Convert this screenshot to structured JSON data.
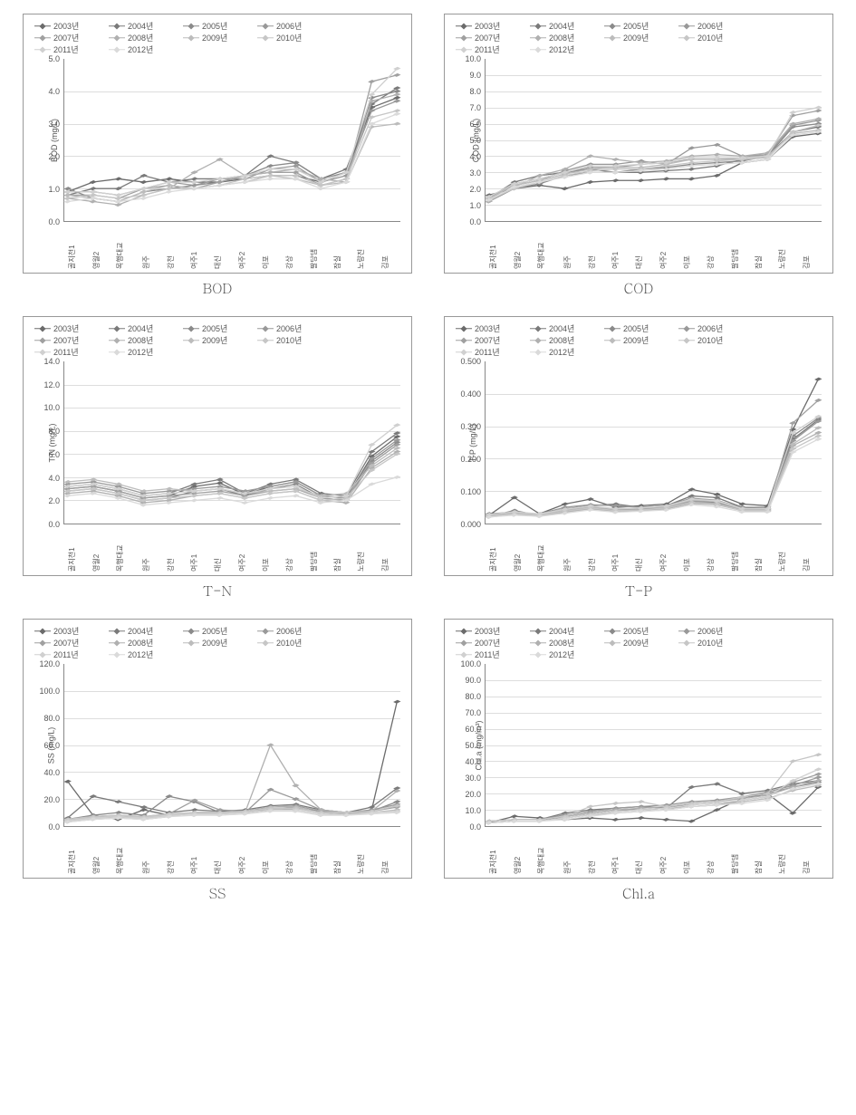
{
  "sites": [
    "골지천1",
    "영월2",
    "목행대교",
    "원주",
    "강천",
    "여주1",
    "대신",
    "여주2",
    "이포",
    "강상",
    "팔당댐",
    "잠실",
    "노량진",
    "김포"
  ],
  "years": [
    "2003년",
    "2004년",
    "2005년",
    "2006년",
    "2007년",
    "2008년",
    "2009년",
    "2010년",
    "2011년",
    "2012년"
  ],
  "colors": [
    "#6b6b6b",
    "#7a7a7a",
    "#8a8a8a",
    "#999999",
    "#a0a0a0",
    "#b0b0b0",
    "#bcbcbc",
    "#c6c6c6",
    "#d0d0d0",
    "#dadada"
  ],
  "legend_fontsize": 9,
  "axis_fontsize": 9,
  "caption_fontsize": 15,
  "caption_font": "Batang, serif",
  "grid_color": "#dddddd",
  "axis_color": "#888888",
  "background": "#ffffff",
  "charts": [
    {
      "id": "bod",
      "caption": "BOD",
      "ylabel": "BOD (mg/L)",
      "ymin": 0,
      "ymax": 5,
      "ystep": 1,
      "decimals": 1,
      "series": [
        [
          0.9,
          1.2,
          1.3,
          1.2,
          1.3,
          1.2,
          1.2,
          1.3,
          1.4,
          1.4,
          1.2,
          1.5,
          3.5,
          3.8
        ],
        [
          0.8,
          1.0,
          1.0,
          1.4,
          1.2,
          1.3,
          1.3,
          1.4,
          2.0,
          1.8,
          1.3,
          1.6,
          3.6,
          4.1
        ],
        [
          1.0,
          0.7,
          0.6,
          0.9,
          1.0,
          1.1,
          1.2,
          1.4,
          1.7,
          1.8,
          1.3,
          1.5,
          3.8,
          4.0
        ],
        [
          0.9,
          0.9,
          0.8,
          1.0,
          1.2,
          1.1,
          1.3,
          1.3,
          1.6,
          1.7,
          1.2,
          1.4,
          3.4,
          3.7
        ],
        [
          0.8,
          0.8,
          0.7,
          1.0,
          1.1,
          1.0,
          1.2,
          1.4,
          1.5,
          1.5,
          1.1,
          1.3,
          4.3,
          4.5
        ],
        [
          0.7,
          0.6,
          0.5,
          0.8,
          1.0,
          1.5,
          1.9,
          1.4,
          1.5,
          1.6,
          1.3,
          1.2,
          3.7,
          3.9
        ],
        [
          0.8,
          0.7,
          0.6,
          0.9,
          1.1,
          1.0,
          1.1,
          1.2,
          1.4,
          1.3,
          1.1,
          1.2,
          2.9,
          3.0
        ],
        [
          0.7,
          0.8,
          0.7,
          0.8,
          1.0,
          1.0,
          1.1,
          1.3,
          1.4,
          1.4,
          1.1,
          1.3,
          3.2,
          3.4
        ],
        [
          0.9,
          0.9,
          0.8,
          1.0,
          1.2,
          1.2,
          1.3,
          1.4,
          1.6,
          1.6,
          1.2,
          1.5,
          3.9,
          4.7
        ],
        [
          0.6,
          0.7,
          0.6,
          0.7,
          0.9,
          1.0,
          1.1,
          1.2,
          1.3,
          1.3,
          1.0,
          1.2,
          3.0,
          3.3
        ]
      ]
    },
    {
      "id": "cod",
      "caption": "COD",
      "ylabel": "COD (mg/L)",
      "ymin": 0,
      "ymax": 10,
      "ystep": 1,
      "decimals": 1,
      "series": [
        [
          1.6,
          2.0,
          2.2,
          2.0,
          2.4,
          2.5,
          2.5,
          2.6,
          2.6,
          2.8,
          3.6,
          3.8,
          5.2,
          5.4
        ],
        [
          1.4,
          2.4,
          2.8,
          3.0,
          3.2,
          3.0,
          3.0,
          3.1,
          3.2,
          3.4,
          3.8,
          4.0,
          5.5,
          5.8
        ],
        [
          1.2,
          2.0,
          2.3,
          2.8,
          3.0,
          3.0,
          3.2,
          3.3,
          3.5,
          3.6,
          3.7,
          4.0,
          5.8,
          6.0
        ],
        [
          1.5,
          2.2,
          2.5,
          3.1,
          3.5,
          3.5,
          3.7,
          3.5,
          4.5,
          4.7,
          4.0,
          4.1,
          5.9,
          6.2
        ],
        [
          1.3,
          2.3,
          2.6,
          3.0,
          3.3,
          3.3,
          3.5,
          3.6,
          3.8,
          3.8,
          3.9,
          4.1,
          6.5,
          6.8
        ],
        [
          1.2,
          2.1,
          2.8,
          3.2,
          4.0,
          3.8,
          3.6,
          3.7,
          4.0,
          4.1,
          4.0,
          4.2,
          6.0,
          6.3
        ],
        [
          1.4,
          2.2,
          2.5,
          2.9,
          3.2,
          3.3,
          3.3,
          3.5,
          3.8,
          3.8,
          3.8,
          4.0,
          5.4,
          5.6
        ],
        [
          1.3,
          2.0,
          2.4,
          2.8,
          3.1,
          3.2,
          3.2,
          3.4,
          3.6,
          3.7,
          3.8,
          3.9,
          5.5,
          5.9
        ],
        [
          1.5,
          2.3,
          2.6,
          3.0,
          3.4,
          3.4,
          3.5,
          3.6,
          3.9,
          3.9,
          3.9,
          4.0,
          6.7,
          7.0
        ],
        [
          1.3,
          2.1,
          2.4,
          2.7,
          3.0,
          3.0,
          3.1,
          3.2,
          3.4,
          3.5,
          3.6,
          3.8,
          5.3,
          5.5
        ]
      ]
    },
    {
      "id": "tn",
      "caption": "T-N",
      "ylabel": "T-N (mg/L)",
      "ymin": 0,
      "ymax": 14,
      "ystep": 2,
      "decimals": 1,
      "series": [
        [
          3.0,
          3.2,
          2.8,
          2.2,
          2.4,
          3.2,
          3.5,
          2.5,
          3.2,
          3.6,
          2.4,
          2.2,
          5.8,
          7.5
        ],
        [
          3.2,
          3.4,
          3.0,
          2.4,
          2.6,
          3.4,
          3.8,
          2.6,
          3.4,
          3.8,
          2.6,
          2.4,
          6.2,
          7.8
        ],
        [
          2.8,
          3.0,
          2.6,
          2.0,
          2.2,
          2.8,
          3.0,
          2.4,
          3.0,
          3.4,
          2.2,
          2.0,
          5.4,
          7.0
        ],
        [
          3.4,
          3.6,
          3.2,
          2.6,
          2.8,
          3.0,
          3.2,
          2.8,
          3.2,
          3.6,
          2.4,
          2.2,
          5.6,
          7.2
        ],
        [
          3.0,
          3.2,
          2.8,
          2.2,
          2.4,
          2.6,
          2.8,
          2.4,
          2.8,
          3.0,
          2.2,
          2.0,
          5.2,
          6.8
        ],
        [
          2.6,
          2.8,
          2.4,
          1.8,
          2.0,
          2.4,
          2.6,
          2.2,
          2.6,
          2.8,
          2.0,
          1.8,
          4.8,
          6.2
        ],
        [
          3.6,
          3.8,
          3.4,
          2.8,
          3.0,
          2.8,
          3.0,
          2.6,
          2.8,
          3.0,
          2.4,
          2.6,
          5.0,
          6.5
        ],
        [
          2.8,
          3.0,
          2.6,
          2.0,
          2.2,
          2.4,
          2.6,
          2.2,
          2.6,
          2.8,
          2.0,
          2.2,
          4.6,
          6.0
        ],
        [
          3.2,
          3.4,
          3.0,
          2.4,
          2.6,
          2.8,
          3.0,
          2.6,
          3.0,
          3.2,
          2.2,
          2.4,
          6.8,
          8.5
        ],
        [
          2.4,
          2.6,
          2.2,
          1.6,
          1.8,
          2.0,
          2.2,
          1.8,
          2.2,
          2.4,
          1.8,
          2.0,
          3.4,
          4.0
        ]
      ]
    },
    {
      "id": "tp",
      "caption": "T-P",
      "ylabel": "T-P (mg/L)",
      "ymin": 0,
      "ymax": 0.5,
      "ystep": 0.1,
      "decimals": 3,
      "series": [
        [
          0.025,
          0.08,
          0.03,
          0.06,
          0.075,
          0.05,
          0.055,
          0.06,
          0.105,
          0.09,
          0.06,
          0.055,
          0.29,
          0.445
        ],
        [
          0.03,
          0.035,
          0.028,
          0.045,
          0.055,
          0.06,
          0.05,
          0.055,
          0.085,
          0.08,
          0.05,
          0.05,
          0.26,
          0.32
        ],
        [
          0.022,
          0.04,
          0.025,
          0.035,
          0.048,
          0.04,
          0.042,
          0.048,
          0.07,
          0.065,
          0.045,
          0.04,
          0.27,
          0.325
        ],
        [
          0.028,
          0.032,
          0.03,
          0.05,
          0.058,
          0.055,
          0.05,
          0.055,
          0.078,
          0.072,
          0.048,
          0.045,
          0.255,
          0.315
        ],
        [
          0.024,
          0.03,
          0.026,
          0.04,
          0.05,
          0.042,
          0.045,
          0.05,
          0.068,
          0.062,
          0.042,
          0.042,
          0.31,
          0.38
        ],
        [
          0.02,
          0.028,
          0.024,
          0.035,
          0.045,
          0.038,
          0.04,
          0.045,
          0.062,
          0.058,
          0.04,
          0.038,
          0.24,
          0.28
        ],
        [
          0.026,
          0.034,
          0.028,
          0.042,
          0.052,
          0.045,
          0.048,
          0.052,
          0.072,
          0.068,
          0.044,
          0.044,
          0.245,
          0.295
        ],
        [
          0.022,
          0.03,
          0.026,
          0.038,
          0.048,
          0.04,
          0.042,
          0.048,
          0.065,
          0.06,
          0.04,
          0.04,
          0.23,
          0.27
        ],
        [
          0.028,
          0.036,
          0.03,
          0.044,
          0.054,
          0.046,
          0.048,
          0.054,
          0.075,
          0.07,
          0.046,
          0.046,
          0.28,
          0.33
        ],
        [
          0.02,
          0.026,
          0.022,
          0.032,
          0.042,
          0.035,
          0.038,
          0.042,
          0.058,
          0.052,
          0.036,
          0.036,
          0.22,
          0.26
        ]
      ]
    },
    {
      "id": "ss",
      "caption": "SS",
      "ylabel": "SS (mg/L)",
      "ymin": 0,
      "ymax": 120,
      "ystep": 20,
      "decimals": 1,
      "series": [
        [
          33,
          8,
          5,
          12,
          8,
          10,
          10,
          10,
          12,
          13,
          11,
          9,
          12,
          92
        ],
        [
          6,
          22,
          18,
          14,
          10,
          12,
          11,
          12,
          15,
          16,
          12,
          10,
          14,
          28
        ],
        [
          5,
          8,
          10,
          8,
          22,
          18,
          10,
          11,
          12,
          14,
          10,
          9,
          11,
          18
        ],
        [
          4,
          6,
          7,
          6,
          8,
          10,
          10,
          10,
          27,
          20,
          12,
          10,
          12,
          16
        ],
        [
          5,
          7,
          8,
          7,
          9,
          19,
          12,
          11,
          14,
          15,
          11,
          10,
          11,
          14
        ],
        [
          3,
          5,
          6,
          5,
          7,
          10,
          10,
          10,
          60,
          30,
          12,
          10,
          11,
          26
        ],
        [
          4,
          6,
          7,
          6,
          8,
          9,
          9,
          10,
          14,
          14,
          10,
          9,
          10,
          12
        ],
        [
          5,
          7,
          8,
          7,
          9,
          10,
          10,
          11,
          13,
          13,
          10,
          10,
          11,
          15
        ],
        [
          4,
          6,
          7,
          6,
          8,
          9,
          9,
          10,
          12,
          12,
          9,
          8,
          10,
          11
        ],
        [
          3,
          5,
          6,
          5,
          7,
          8,
          8,
          9,
          11,
          11,
          8,
          8,
          9,
          10
        ]
      ]
    },
    {
      "id": "chla",
      "caption": "Chl.a",
      "ylabel": "Chl.a (mg/m³)",
      "ymin": 0,
      "ymax": 100,
      "ystep": 10,
      "decimals": 1,
      "series": [
        [
          2,
          6,
          5,
          4,
          5,
          4,
          5,
          4,
          3,
          10,
          17,
          20,
          8,
          24
        ],
        [
          3,
          4,
          4,
          8,
          10,
          11,
          12,
          11,
          24,
          26,
          20,
          22,
          26,
          28
        ],
        [
          2,
          3,
          3,
          6,
          8,
          10,
          10,
          11,
          14,
          15,
          18,
          20,
          24,
          27
        ],
        [
          3,
          4,
          4,
          7,
          9,
          11,
          12,
          13,
          15,
          16,
          18,
          21,
          25,
          30
        ],
        [
          2,
          3,
          3,
          5,
          7,
          9,
          10,
          11,
          12,
          13,
          16,
          18,
          27,
          32
        ],
        [
          3,
          4,
          4,
          6,
          8,
          10,
          11,
          12,
          14,
          15,
          17,
          19,
          24,
          28
        ],
        [
          2,
          3,
          3,
          5,
          7,
          8,
          9,
          10,
          12,
          13,
          15,
          17,
          22,
          25
        ],
        [
          3,
          4,
          4,
          6,
          12,
          14,
          15,
          12,
          14,
          15,
          18,
          20,
          40,
          44
        ],
        [
          2,
          3,
          3,
          5,
          7,
          9,
          10,
          11,
          13,
          14,
          16,
          18,
          28,
          35
        ],
        [
          2,
          3,
          3,
          4,
          6,
          8,
          9,
          10,
          12,
          13,
          14,
          16,
          23,
          26
        ]
      ]
    }
  ]
}
